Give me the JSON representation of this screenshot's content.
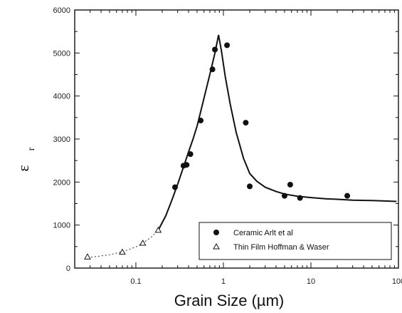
{
  "chart_data": {
    "type": "scatter",
    "title": "",
    "xlabel": "Grain Size (µm)",
    "ylabel": "ε",
    "ylabel_subscript": "r",
    "x_scale": "log",
    "xlim": [
      0.02,
      100
    ],
    "ylim": [
      0,
      6000
    ],
    "x_ticks": [
      0.1,
      1,
      10,
      100
    ],
    "x_tick_labels": [
      "0.1",
      "1",
      "10",
      "100"
    ],
    "y_ticks": [
      0,
      1000,
      2000,
      3000,
      4000,
      5000,
      6000
    ],
    "y_tick_labels": [
      "0",
      "1000",
      "2000",
      "3000",
      "4000",
      "5000",
      "6000"
    ],
    "grid": false,
    "legend": "bottom-right",
    "series": [
      {
        "name": "Ceramic Arlt et al",
        "marker": "filled-circle",
        "x": [
          0.28,
          0.35,
          0.38,
          0.42,
          0.55,
          0.75,
          0.8,
          1.1,
          1.8,
          2.0,
          5.0,
          5.8,
          7.5,
          26
        ],
        "y": [
          1880,
          2380,
          2400,
          2650,
          3430,
          4620,
          5080,
          5180,
          3380,
          1900,
          1680,
          1940,
          1630,
          1680
        ]
      },
      {
        "name": "Thin Film Hoffman & Waser",
        "marker": "open-triangle",
        "x": [
          0.028,
          0.07,
          0.12,
          0.18
        ],
        "y": [
          260,
          370,
          580,
          880
        ]
      }
    ],
    "fit_curve": {
      "x": [
        0.028,
        0.05,
        0.07,
        0.1,
        0.12,
        0.15,
        0.18,
        0.22,
        0.26,
        0.3,
        0.35,
        0.4,
        0.45,
        0.5,
        0.6,
        0.7,
        0.8,
        0.88,
        0.95,
        1.05,
        1.2,
        1.4,
        1.7,
        2.0,
        2.4,
        3.0,
        4.0,
        5.0,
        7.0,
        10,
        15,
        20,
        30,
        50,
        70,
        95
      ],
      "y": [
        240,
        310,
        380,
        490,
        580,
        720,
        880,
        1220,
        1600,
        1950,
        2350,
        2700,
        3000,
        3300,
        3950,
        4500,
        5000,
        5420,
        5050,
        4450,
        3800,
        3150,
        2550,
        2200,
        2020,
        1880,
        1780,
        1720,
        1670,
        1640,
        1610,
        1600,
        1580,
        1570,
        1560,
        1550
      ]
    }
  }
}
